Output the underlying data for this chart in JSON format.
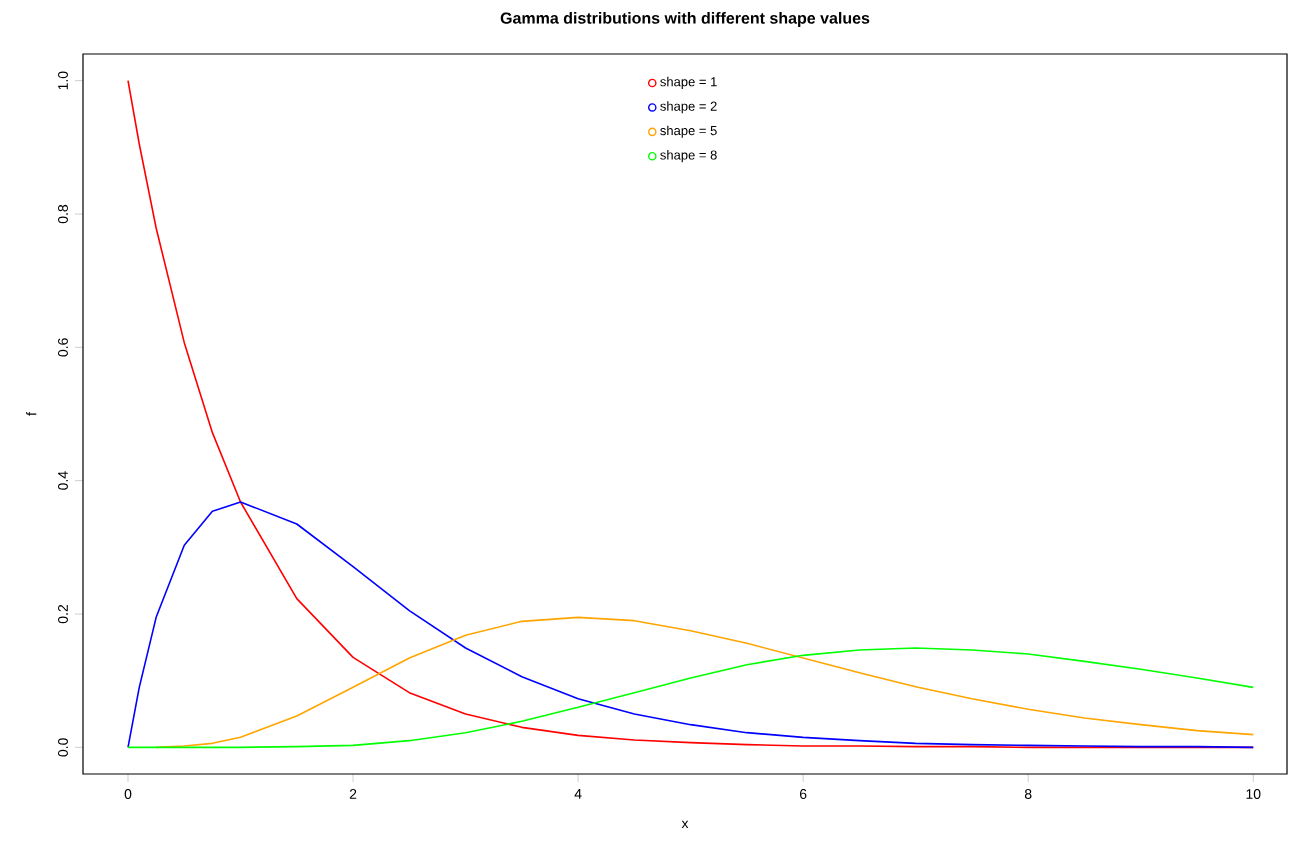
{
  "chart_data": {
    "type": "line",
    "title": "Gamma distributions with different shape values",
    "xlabel": "x",
    "ylabel": "f",
    "x": [
      0,
      0.1,
      0.25,
      0.5,
      0.75,
      1,
      1.5,
      2,
      2.5,
      3,
      3.5,
      4,
      4.5,
      5,
      5.5,
      6,
      6.5,
      7,
      7.5,
      8,
      8.5,
      9,
      9.5,
      10
    ],
    "series": [
      {
        "name": "shape = 1",
        "color": "#ff0000",
        "values": [
          1,
          0.905,
          0.779,
          0.607,
          0.472,
          0.368,
          0.223,
          0.135,
          0.082,
          0.05,
          0.03,
          0.018,
          0.011,
          0.007,
          0.004,
          0.002,
          0.002,
          0.001,
          0.001,
          0,
          0,
          0,
          0,
          0
        ]
      },
      {
        "name": "shape = 2",
        "color": "#0000ff",
        "values": [
          0,
          0.09,
          0.195,
          0.303,
          0.354,
          0.368,
          0.335,
          0.271,
          0.205,
          0.149,
          0.106,
          0.073,
          0.05,
          0.034,
          0.022,
          0.015,
          0.01,
          0.006,
          0.004,
          0.003,
          0.002,
          0.001,
          0.001,
          0
        ]
      },
      {
        "name": "shape = 5",
        "color": "#ffa500",
        "values": [
          null,
          null,
          0,
          0.002,
          0.006,
          0.015,
          0.047,
          0.09,
          0.134,
          0.168,
          0.189,
          0.195,
          0.19,
          0.175,
          0.156,
          0.134,
          0.112,
          0.091,
          0.073,
          0.057,
          0.044,
          0.034,
          0.025,
          0.019
        ]
      },
      {
        "name": "shape = 8",
        "color": "#00ff00",
        "values": [
          0,
          0,
          0,
          0,
          0,
          0,
          0.001,
          0.003,
          0.01,
          0.022,
          0.039,
          0.06,
          0.082,
          0.104,
          0.124,
          0.138,
          0.146,
          0.149,
          0.146,
          0.14,
          0.129,
          0.117,
          0.104,
          0.09
        ]
      }
    ],
    "xlim": [
      -0.4,
      10.3
    ],
    "ylim": [
      -0.04,
      1.04
    ],
    "xticks": [
      0,
      2,
      4,
      6,
      8,
      10
    ],
    "yticks": [
      {
        "value": 0,
        "label": "0.0"
      },
      0.2,
      0.4,
      0.6,
      0.8,
      {
        "value": 1,
        "label": "1.0"
      }
    ],
    "legend": "top"
  }
}
